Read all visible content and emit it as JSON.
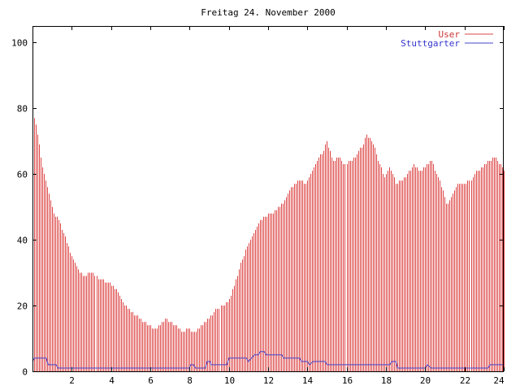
{
  "chart_data": {
    "type": "line",
    "title": "Freitag 24. November 2000",
    "xlabel": "",
    "ylabel": "",
    "xlim": [
      0,
      24
    ],
    "ylim": [
      0,
      105
    ],
    "x_ticks": [
      2,
      4,
      6,
      8,
      10,
      12,
      14,
      16,
      18,
      20,
      22,
      24
    ],
    "x_tick_labels": [
      "2",
      "4",
      "6",
      "8",
      "10",
      "12",
      "14",
      "16",
      "18",
      "20",
      "22",
      "24"
    ],
    "y_ticks": [
      0,
      20,
      40,
      60,
      80,
      100
    ],
    "y_tick_labels": [
      "0",
      "20",
      "40",
      "60",
      "80",
      "100"
    ],
    "grid": false,
    "legend_position": "top-right",
    "sample_interval_hours": 0.0833,
    "series": [
      {
        "name": "User",
        "style": "impulses",
        "color": "#dd4444",
        "anchors": [
          [
            0,
            78
          ],
          [
            0.15,
            76
          ],
          [
            0.3,
            70
          ],
          [
            0.5,
            62
          ],
          [
            0.8,
            55
          ],
          [
            1.1,
            48
          ],
          [
            1.4,
            45
          ],
          [
            1.7,
            40
          ],
          [
            2.0,
            35
          ],
          [
            2.3,
            31
          ],
          [
            2.6,
            29
          ],
          [
            3.0,
            30
          ],
          [
            3.4,
            28
          ],
          [
            3.8,
            27
          ],
          [
            4.1,
            26
          ],
          [
            4.4,
            23
          ],
          [
            4.7,
            20
          ],
          [
            5.0,
            18
          ],
          [
            5.3,
            17
          ],
          [
            5.6,
            15
          ],
          [
            5.9,
            14
          ],
          [
            6.2,
            13
          ],
          [
            6.5,
            14
          ],
          [
            6.8,
            16
          ],
          [
            7.0,
            15
          ],
          [
            7.3,
            14
          ],
          [
            7.6,
            12
          ],
          [
            7.9,
            13
          ],
          [
            8.2,
            12
          ],
          [
            8.5,
            13
          ],
          [
            8.8,
            15
          ],
          [
            9.1,
            17
          ],
          [
            9.4,
            19
          ],
          [
            9.7,
            20
          ],
          [
            10.0,
            22
          ],
          [
            10.3,
            27
          ],
          [
            10.6,
            33
          ],
          [
            10.9,
            38
          ],
          [
            11.2,
            41
          ],
          [
            11.5,
            45
          ],
          [
            11.8,
            47
          ],
          [
            12.1,
            48
          ],
          [
            12.4,
            49
          ],
          [
            12.7,
            51
          ],
          [
            13.0,
            54
          ],
          [
            13.3,
            57
          ],
          [
            13.6,
            58
          ],
          [
            13.9,
            57
          ],
          [
            14.2,
            60
          ],
          [
            14.5,
            64
          ],
          [
            14.8,
            67
          ],
          [
            15.0,
            70
          ],
          [
            15.3,
            64
          ],
          [
            15.6,
            65
          ],
          [
            15.9,
            63
          ],
          [
            16.2,
            64
          ],
          [
            16.5,
            66
          ],
          [
            16.8,
            69
          ],
          [
            17.0,
            72
          ],
          [
            17.3,
            70
          ],
          [
            17.6,
            64
          ],
          [
            17.9,
            59
          ],
          [
            18.2,
            62
          ],
          [
            18.5,
            57
          ],
          [
            18.8,
            58
          ],
          [
            19.1,
            60
          ],
          [
            19.4,
            63
          ],
          [
            19.7,
            61
          ],
          [
            20.0,
            62
          ],
          [
            20.3,
            64
          ],
          [
            20.6,
            60
          ],
          [
            20.9,
            55
          ],
          [
            21.1,
            50
          ],
          [
            21.4,
            54
          ],
          [
            21.7,
            57
          ],
          [
            22.0,
            57
          ],
          [
            22.3,
            58
          ],
          [
            22.6,
            61
          ],
          [
            22.9,
            62
          ],
          [
            23.2,
            64
          ],
          [
            23.5,
            65
          ],
          [
            23.8,
            63
          ],
          [
            24.0,
            61
          ]
        ]
      },
      {
        "name": "Stuttgarter",
        "style": "lines",
        "color": "#4444cc",
        "anchors": [
          [
            0,
            3
          ],
          [
            0.1,
            4
          ],
          [
            0.7,
            4
          ],
          [
            0.8,
            2
          ],
          [
            1.2,
            2
          ],
          [
            1.3,
            1
          ],
          [
            8.0,
            1
          ],
          [
            8.05,
            2
          ],
          [
            8.2,
            2
          ],
          [
            8.3,
            1
          ],
          [
            8.8,
            1
          ],
          [
            8.9,
            3
          ],
          [
            9.05,
            3
          ],
          [
            9.1,
            2
          ],
          [
            9.9,
            2
          ],
          [
            10.0,
            4
          ],
          [
            10.9,
            4
          ],
          [
            11.0,
            3
          ],
          [
            11.3,
            5
          ],
          [
            11.5,
            5
          ],
          [
            11.6,
            6
          ],
          [
            11.8,
            6
          ],
          [
            11.9,
            5
          ],
          [
            12.7,
            5
          ],
          [
            12.8,
            4
          ],
          [
            13.6,
            4
          ],
          [
            13.7,
            3
          ],
          [
            14.0,
            3
          ],
          [
            14.1,
            2
          ],
          [
            14.3,
            3
          ],
          [
            14.9,
            3
          ],
          [
            15.0,
            2
          ],
          [
            18.2,
            2
          ],
          [
            18.3,
            3
          ],
          [
            18.5,
            3
          ],
          [
            18.6,
            1
          ],
          [
            20.0,
            1
          ],
          [
            20.1,
            2
          ],
          [
            20.3,
            1
          ],
          [
            23.2,
            1
          ],
          [
            23.3,
            2
          ],
          [
            24.0,
            2
          ]
        ]
      }
    ]
  }
}
